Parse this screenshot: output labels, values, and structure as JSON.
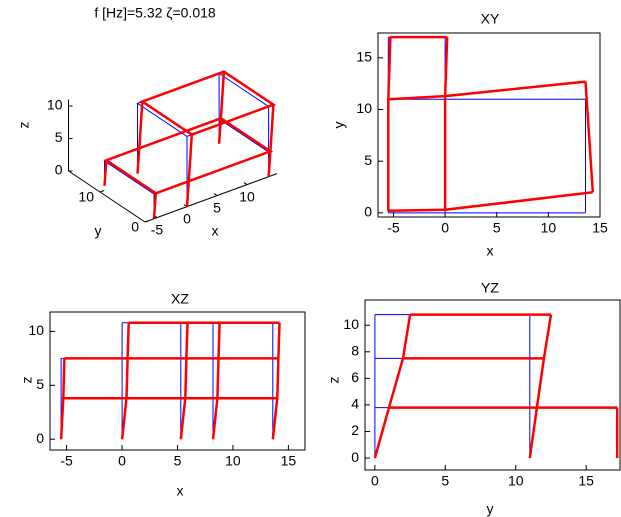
{
  "chart_data": [
    {
      "type": "line3d",
      "title": "f [Hz]=5.32 ζ=0.018",
      "xlabel": "x",
      "ylabel": "y",
      "zlabel": "z",
      "xlim": [
        -7,
        15
      ],
      "ylim": [
        0,
        17
      ],
      "zlim": [
        0,
        11
      ],
      "xticks": [
        -5,
        0,
        5,
        10
      ],
      "yticks": [
        0,
        10
      ],
      "zticks": [
        0,
        5,
        10
      ],
      "series": [
        {
          "color": "#0000ff",
          "x": [
            0,
            13.6,
            13.6,
            0,
            0,
            null,
            -5.5,
            13.6,
            13.6,
            -5.5,
            -5.5,
            null,
            0,
            0,
            null,
            13.6,
            13.6,
            null,
            13.6,
            13.6,
            null,
            0,
            0,
            null,
            -5.5,
            -5.5,
            null,
            -5.5,
            -5.5
          ],
          "y": [
            0,
            0,
            11,
            11,
            0,
            null,
            0,
            0,
            11,
            11,
            0,
            null,
            0,
            0,
            null,
            0,
            0,
            null,
            11,
            11,
            null,
            11,
            11,
            null,
            0,
            0,
            null,
            11,
            11
          ],
          "z": [
            10.8,
            10.8,
            10.8,
            10.8,
            10.8,
            null,
            3.8,
            3.8,
            3.8,
            3.8,
            3.8,
            null,
            0,
            10.8,
            null,
            0,
            10.8,
            null,
            0,
            10.8,
            null,
            0,
            10.8,
            null,
            0,
            3.8,
            null,
            0,
            3.8
          ]
        },
        {
          "color": "#ff0000",
          "x": [
            0.8,
            14.4,
            14.4,
            0.8,
            0.8,
            null,
            -5.2,
            13.9,
            13.9,
            -5.2,
            -5.2,
            null,
            0,
            0.3,
            0.8,
            null,
            13.6,
            13.9,
            14.4,
            null,
            13.6,
            13.9,
            14.4,
            null,
            0,
            0.3,
            0.8,
            null,
            -5.5,
            -5.2,
            null,
            -5.5,
            -5.2
          ],
          "y": [
            0,
            0,
            11,
            11,
            0,
            null,
            0,
            0,
            11,
            11,
            0,
            null,
            0,
            0,
            0,
            null,
            0,
            0,
            0,
            null,
            11,
            11,
            11,
            null,
            11,
            11,
            11,
            null,
            0,
            0,
            null,
            11,
            11
          ],
          "z": [
            10.8,
            10.8,
            10.8,
            10.8,
            10.8,
            null,
            3.8,
            3.8,
            3.8,
            3.8,
            3.8,
            null,
            0,
            3.8,
            10.8,
            null,
            0,
            3.8,
            10.8,
            null,
            0,
            3.8,
            10.8,
            null,
            0,
            3.8,
            10.8,
            null,
            0,
            3.8,
            null,
            0,
            3.8
          ]
        }
      ]
    },
    {
      "type": "line",
      "title": "XY",
      "xlabel": "x",
      "ylabel": "y",
      "xlim": [
        -6.5,
        15
      ],
      "ylim": [
        -0.4,
        17.4
      ],
      "xticks": [
        -5,
        0,
        5,
        10,
        15
      ],
      "yticks": [
        0,
        5,
        10,
        15
      ],
      "series": [
        {
          "color": "#0000ff",
          "x": [
            -5.5,
            13.6,
            null,
            -5.5,
            13.6,
            null,
            -5.5,
            0,
            null,
            -5.5,
            -5.5,
            null,
            0,
            0,
            null,
            13.6,
            13.6
          ],
          "y": [
            0,
            0,
            null,
            11,
            11,
            null,
            17,
            17,
            null,
            0,
            17,
            null,
            0,
            17,
            null,
            0,
            11
          ]
        },
        {
          "color": "#ff0000",
          "x": [
            -5.5,
            0,
            14.3,
            null,
            -5.5,
            0,
            13.6,
            null,
            -5.3,
            0.2,
            null,
            -5.5,
            -5.5,
            -5.3,
            null,
            0,
            0,
            0.2,
            null,
            14.3,
            13.6
          ],
          "y": [
            0.2,
            0.3,
            2,
            null,
            11,
            11.3,
            12.7,
            null,
            17,
            17,
            null,
            0.2,
            11,
            17,
            null,
            0.3,
            11.3,
            17,
            null,
            2,
            12.7
          ]
        }
      ]
    },
    {
      "type": "line",
      "title": "XZ",
      "xlabel": "x",
      "ylabel": "z",
      "xlim": [
        -6.5,
        16.5
      ],
      "ylim": [
        -1,
        11.8
      ],
      "xticks": [
        -5,
        0,
        5,
        10,
        15
      ],
      "yticks": [
        0,
        5,
        10
      ],
      "series": [
        {
          "color": "#0000ff",
          "x": [
            -5.5,
            13.6,
            null,
            -5.5,
            13.6,
            null,
            0,
            13.6,
            null,
            -5.5,
            -5.5,
            null,
            0,
            0,
            null,
            5.3,
            5.3,
            null,
            8.2,
            8.2,
            null,
            13.6,
            13.6
          ],
          "y": [
            3.8,
            3.8,
            null,
            7.5,
            7.5,
            null,
            10.8,
            10.8,
            null,
            0,
            7.5,
            null,
            0,
            10.8,
            null,
            0,
            10.8,
            null,
            0,
            10.8,
            null,
            0,
            10.8
          ]
        },
        {
          "color": "#ff0000",
          "x": [
            -5.3,
            14,
            null,
            -5.2,
            14.1,
            null,
            0.6,
            14.2,
            null,
            -5.5,
            -5.3,
            -5.2,
            null,
            0,
            0.4,
            0.5,
            0.6,
            null,
            5.3,
            5.7,
            5.8,
            5.9,
            null,
            8.2,
            8.6,
            8.7,
            8.8,
            null,
            13.6,
            14,
            14.1,
            14.2
          ],
          "y": [
            3.8,
            3.8,
            null,
            7.5,
            7.5,
            null,
            10.8,
            10.8,
            null,
            0,
            3.8,
            7.5,
            null,
            0,
            3.8,
            7.5,
            10.8,
            null,
            0,
            3.8,
            7.5,
            10.8,
            null,
            0,
            3.8,
            7.5,
            10.8,
            null,
            0,
            3.8,
            7.5,
            10.8
          ]
        }
      ]
    },
    {
      "type": "line",
      "title": "YZ",
      "xlabel": "y",
      "ylabel": "z",
      "xlim": [
        -0.7,
        17.4
      ],
      "ylim": [
        -0.9,
        11.9
      ],
      "xticks": [
        0,
        5,
        10,
        15
      ],
      "yticks": [
        0,
        2,
        4,
        6,
        8,
        10
      ],
      "series": [
        {
          "color": "#0000ff",
          "x": [
            0,
            17.2,
            null,
            0,
            11,
            null,
            0,
            11,
            null,
            0,
            0,
            null,
            11,
            11,
            null,
            17.2,
            17.2
          ],
          "y": [
            3.8,
            3.8,
            null,
            7.5,
            7.5,
            null,
            10.8,
            10.8,
            null,
            0,
            10.8,
            null,
            0,
            10.8,
            null,
            0,
            3.8
          ]
        },
        {
          "color": "#ff0000",
          "x": [
            1,
            17.2,
            null,
            2,
            12,
            null,
            2.5,
            12.5,
            null,
            0,
            1,
            2,
            2.5,
            null,
            11,
            11.5,
            12,
            12.5,
            null,
            17.2,
            17.2
          ],
          "y": [
            3.8,
            3.8,
            null,
            7.5,
            7.5,
            null,
            10.8,
            10.8,
            null,
            0,
            3.8,
            7.5,
            10.8,
            null,
            0,
            3.8,
            7.5,
            10.8,
            null,
            0,
            3.8
          ]
        }
      ]
    }
  ]
}
